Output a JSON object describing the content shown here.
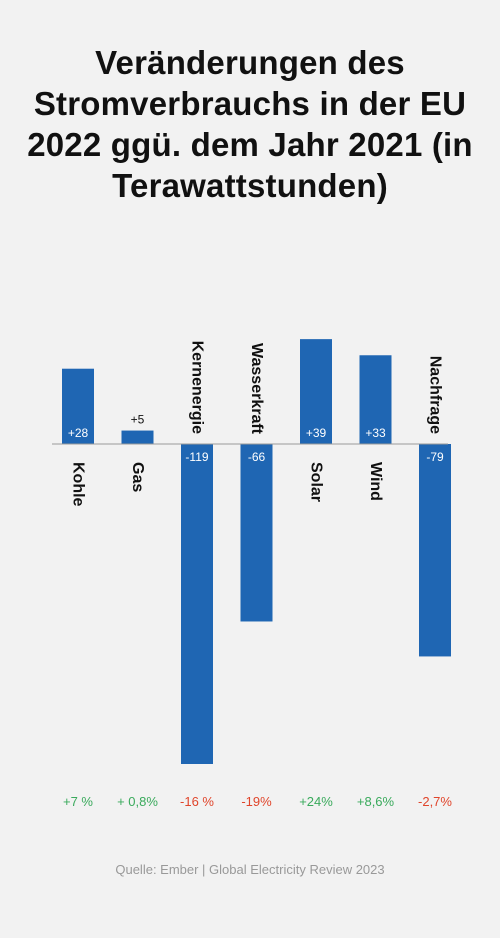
{
  "title": "Veränderungen des Stromverbrauchs in der EU 2022 ggü. dem Jahr 2021 (in Terawattstunden)",
  "source": "Quelle: Ember | Global Electricity Review 2023",
  "colors": {
    "bar": "#1f66b3",
    "positive": "#3aaa5c",
    "negative": "#e0452b",
    "axis": "#999999"
  },
  "chart_data": {
    "type": "bar",
    "categories": [
      "Kohle",
      "Gas",
      "Kernenergie",
      "Wasserkraft",
      "Solar",
      "Wind",
      "Nachfrage"
    ],
    "values": [
      28,
      5,
      -119,
      -66,
      39,
      33,
      -79
    ],
    "value_labels": [
      "+28",
      "+5",
      "-119",
      "-66",
      "+39",
      "+33",
      "-79"
    ],
    "percent_changes": [
      "+7 %",
      "+ 0,8%",
      "-16 %",
      "-19%",
      "+24%",
      "+8,6%",
      "-2,7%"
    ],
    "percent_sign": [
      "positive",
      "positive",
      "negative",
      "negative",
      "positive",
      "positive",
      "negative"
    ],
    "unit": "TWh",
    "ylim": [
      -119,
      39
    ]
  }
}
